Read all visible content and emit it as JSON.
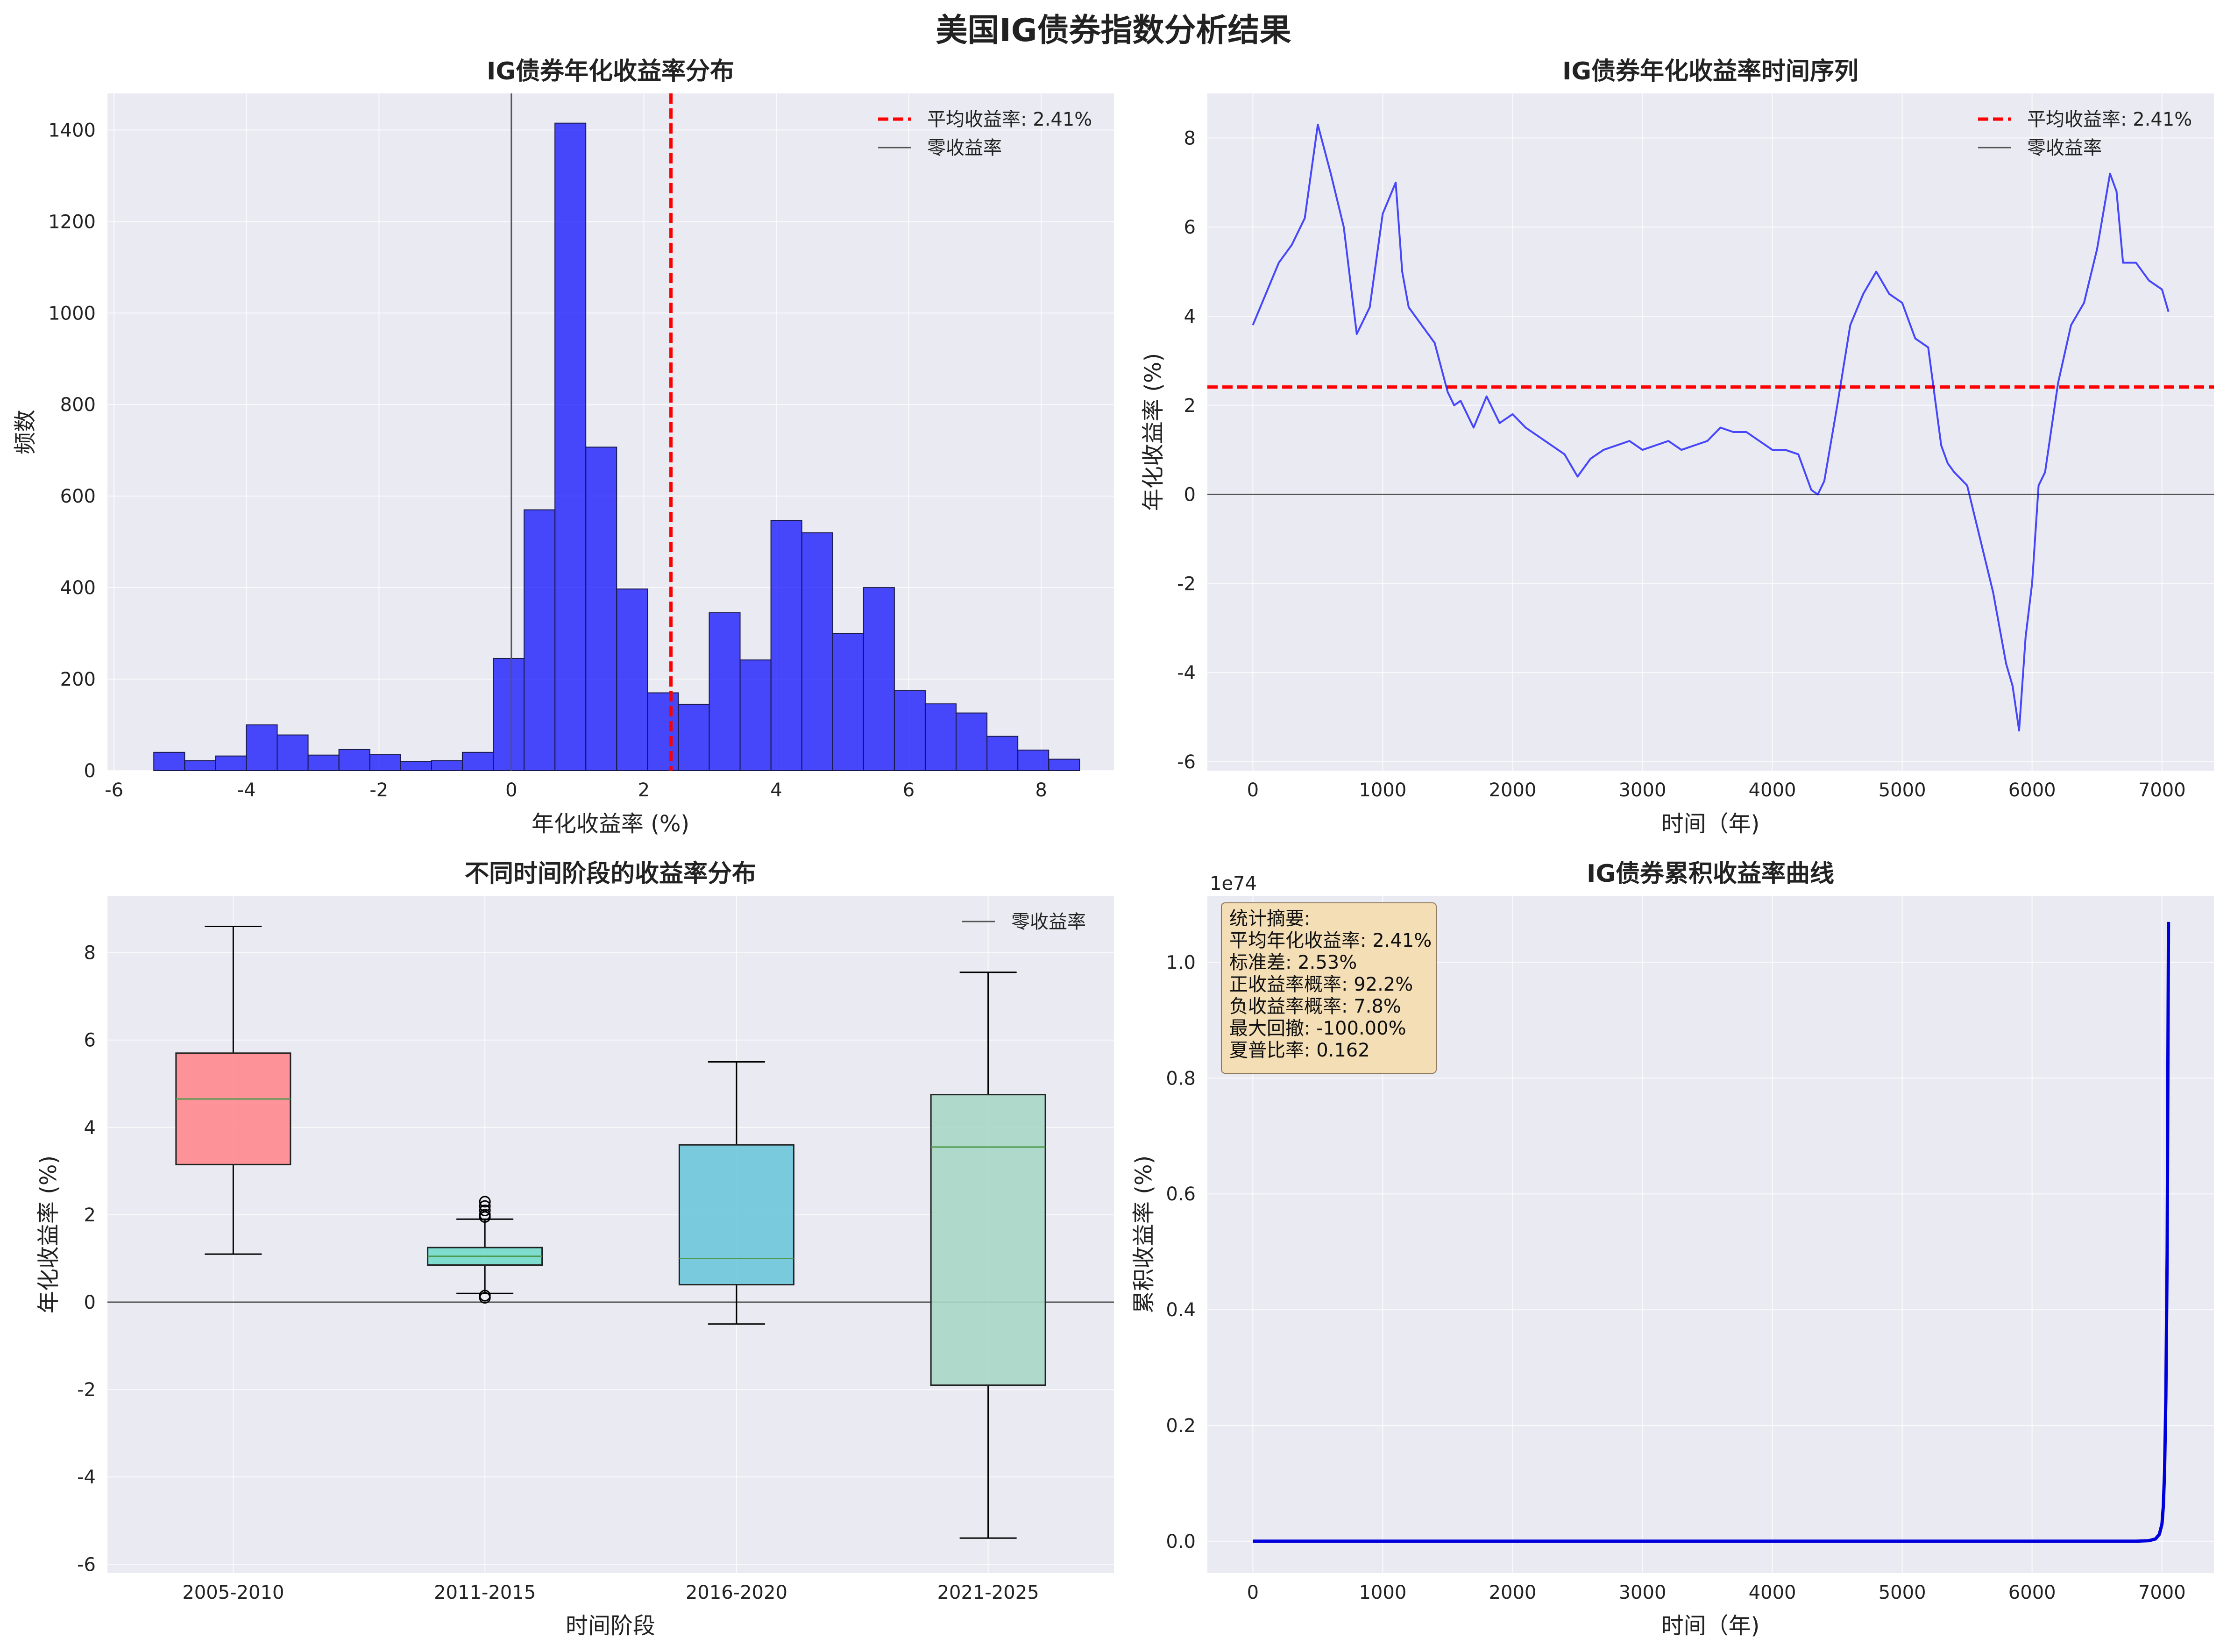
{
  "suptitle": "美国IG债券指数分析结果",
  "chart_data": [
    {
      "type": "bar",
      "title": "IG债券年化收益率分布",
      "xlabel": "年化收益率 (%)",
      "ylabel": "频数",
      "xlim": [
        -6.1,
        9.1
      ],
      "ylim": [
        0,
        1480
      ],
      "xticks": [
        -6,
        -4,
        -2,
        0,
        2,
        4,
        6,
        8
      ],
      "xtick_labels": [
        "-6",
        "-4",
        "-2",
        "0",
        "2",
        "4",
        "6",
        "8"
      ],
      "yticks": [
        0,
        200,
        400,
        600,
        800,
        1000,
        1200,
        1400
      ],
      "ytick_labels": [
        "0",
        "200",
        "400",
        "600",
        "800",
        "1000",
        "1200",
        "1400"
      ],
      "bin_start": -5.4,
      "bin_width": 0.466,
      "values": [
        40,
        22,
        32,
        100,
        78,
        34,
        46,
        35,
        20,
        22,
        40,
        245,
        570,
        1415,
        707,
        397,
        170,
        145,
        345,
        242,
        547,
        520,
        300,
        400,
        175,
        146,
        126,
        75,
        45,
        25
      ],
      "bar_color": "#0000ff",
      "mean_line": 2.41,
      "zero_line": 0,
      "legend": [
        "平均收益率: 2.41%",
        "零收益率"
      ],
      "legend_position": "top-right",
      "grid": true
    },
    {
      "type": "line",
      "title": "IG债券年化收益率时间序列",
      "xlabel": "时间（年)",
      "ylabel": "年化收益率 (%)",
      "xlim": [
        -350,
        7400
      ],
      "ylim": [
        -6.2,
        9.0
      ],
      "xticks": [
        0,
        1000,
        2000,
        3000,
        4000,
        5000,
        6000,
        7000
      ],
      "xtick_labels": [
        "0",
        "1000",
        "2000",
        "3000",
        "4000",
        "5000",
        "6000",
        "7000"
      ],
      "yticks": [
        -6,
        -4,
        -2,
        0,
        2,
        4,
        6,
        8
      ],
      "ytick_labels": [
        "-6",
        "-4",
        "-2",
        "0",
        "2",
        "4",
        "6",
        "8"
      ],
      "x": [
        0,
        100,
        200,
        300,
        400,
        500,
        600,
        700,
        800,
        900,
        1000,
        1100,
        1150,
        1200,
        1300,
        1400,
        1500,
        1550,
        1600,
        1700,
        1800,
        1900,
        2000,
        2100,
        2200,
        2300,
        2400,
        2500,
        2550,
        2600,
        2700,
        2800,
        2900,
        3000,
        3100,
        3200,
        3300,
        3400,
        3500,
        3600,
        3700,
        3800,
        3900,
        4000,
        4100,
        4200,
        4300,
        4350,
        4400,
        4500,
        4600,
        4700,
        4800,
        4900,
        5000,
        5100,
        5200,
        5300,
        5350,
        5400,
        5500,
        5600,
        5700,
        5800,
        5850,
        5900,
        5950,
        6000,
        6050,
        6100,
        6200,
        6300,
        6400,
        6500,
        6600,
        6650,
        6700,
        6800,
        6900,
        7000,
        7050
      ],
      "y": [
        3.8,
        4.5,
        5.2,
        5.6,
        6.2,
        8.3,
        7.2,
        6.0,
        3.6,
        4.2,
        6.3,
        7.0,
        5.0,
        4.2,
        3.8,
        3.4,
        2.3,
        2.0,
        2.1,
        1.5,
        2.2,
        1.6,
        1.8,
        1.5,
        1.3,
        1.1,
        0.9,
        0.4,
        0.6,
        0.8,
        1.0,
        1.1,
        1.2,
        1.0,
        1.1,
        1.2,
        1.0,
        1.1,
        1.2,
        1.5,
        1.4,
        1.4,
        1.2,
        1.0,
        1.0,
        0.9,
        0.1,
        0.0,
        0.3,
        2.0,
        3.8,
        4.5,
        5.0,
        4.5,
        4.3,
        3.5,
        3.3,
        1.1,
        0.7,
        0.5,
        0.2,
        -1.0,
        -2.2,
        -3.8,
        -4.3,
        -5.3,
        -3.2,
        -2.0,
        0.2,
        0.5,
        2.5,
        3.8,
        4.3,
        5.5,
        7.2,
        6.8,
        5.2,
        5.2,
        4.8,
        4.6,
        4.1
      ],
      "line_color": "#0000ff",
      "mean_line": 2.41,
      "zero_line": 0,
      "legend": [
        "平均收益率: 2.41%",
        "零收益率"
      ],
      "legend_position": "top-right",
      "grid": true
    },
    {
      "type": "box",
      "title": "不同时间阶段的收益率分布",
      "xlabel": "时间阶段",
      "ylabel": "年化收益率 (%)",
      "ylim": [
        -6.2,
        9.3
      ],
      "yticks": [
        -6,
        -4,
        -2,
        0,
        2,
        4,
        6,
        8
      ],
      "ytick_labels": [
        "-6",
        "-4",
        "-2",
        "0",
        "2",
        "4",
        "6",
        "8"
      ],
      "categories": [
        "2005-2010",
        "2011-2015",
        "2016-2020",
        "2021-2025"
      ],
      "boxes": [
        {
          "whisker_low": 1.1,
          "q1": 3.15,
          "median": 4.65,
          "q3": 5.7,
          "whisker_high": 8.6,
          "fliers": [],
          "color": "#ff8a8f"
        },
        {
          "whisker_low": 0.2,
          "q1": 0.85,
          "median": 1.05,
          "q3": 1.25,
          "whisker_high": 1.9,
          "fliers": [
            0.1,
            0.15,
            1.95,
            2.0,
            2.1,
            2.2,
            2.3
          ],
          "color": "#72dccb"
        },
        {
          "whisker_low": -0.5,
          "q1": 0.4,
          "median": 1.0,
          "q3": 3.6,
          "whisker_high": 5.5,
          "fliers": [],
          "color": "#6ec6dc"
        },
        {
          "whisker_low": -5.4,
          "q1": -1.9,
          "median": 3.55,
          "q3": 4.75,
          "whisker_high": 7.55,
          "fliers": [],
          "color": "#a9d8c6"
        }
      ],
      "zero_line": 0,
      "legend": [
        "零收益率"
      ],
      "legend_position": "top-right",
      "grid": true
    },
    {
      "type": "line",
      "title": "IG债券累积收益率曲线",
      "xlabel": "时间（年)",
      "ylabel": "累积收益率 (%)",
      "offset_text": "1e74",
      "xlim": [
        -350,
        7400
      ],
      "ylim": [
        -0.055,
        1.115
      ],
      "xticks": [
        0,
        1000,
        2000,
        3000,
        4000,
        5000,
        6000,
        7000
      ],
      "xtick_labels": [
        "0",
        "1000",
        "2000",
        "3000",
        "4000",
        "5000",
        "6000",
        "7000"
      ],
      "yticks": [
        0.0,
        0.2,
        0.4,
        0.6,
        0.8,
        1.0
      ],
      "ytick_labels": [
        "0.0",
        "0.2",
        "0.4",
        "0.6",
        "0.8",
        "1.0"
      ],
      "x": [
        0,
        1000,
        2000,
        3000,
        4000,
        5000,
        6000,
        6800,
        6900,
        6950,
        6980,
        7000,
        7010,
        7020,
        7030,
        7040,
        7050
      ],
      "y": [
        0,
        0,
        0,
        0,
        0,
        0,
        0,
        0,
        0.001,
        0.004,
        0.012,
        0.03,
        0.06,
        0.12,
        0.25,
        0.5,
        1.07
      ],
      "line_color": "#0000dd",
      "grid": true,
      "stats_box": [
        "统计摘要:",
        "平均年化收益率: 2.41%",
        "标准差: 2.53%",
        "正收益率概率: 92.2%",
        "负收益率概率: 7.8%",
        "最大回撤: -100.00%",
        "夏普比率: 0.162"
      ]
    }
  ]
}
